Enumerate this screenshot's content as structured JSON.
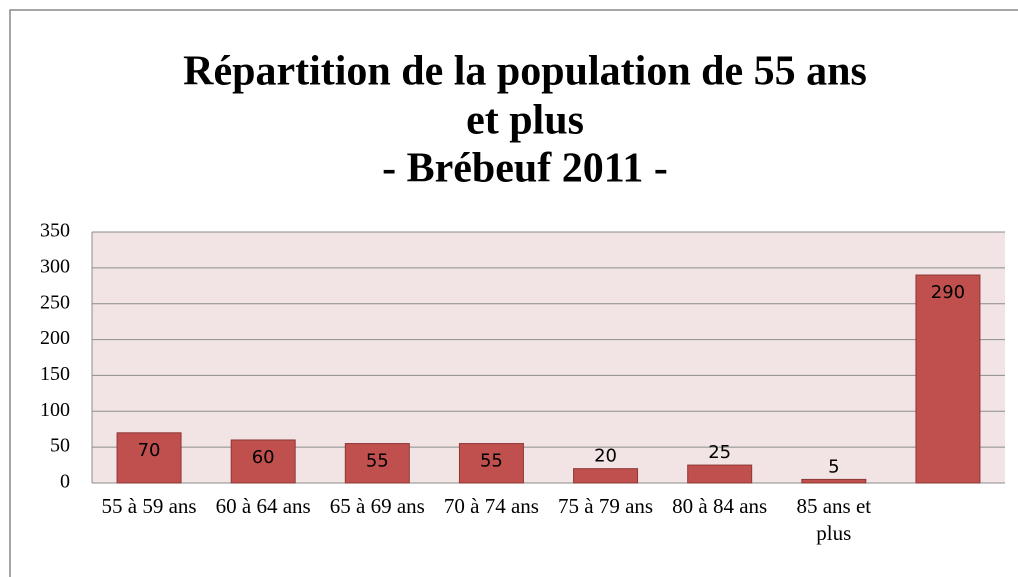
{
  "chart_data": {
    "type": "bar",
    "title": [
      "Répartition de la population de 55 ans",
      "et plus",
      "- Brébeuf 2011 -"
    ],
    "categories": [
      "55 à 59 ans",
      "60 à 64 ans",
      "65 à 69 ans",
      "70 à 74 ans",
      "75 à 79 ans",
      "80 à 84 ans",
      "85 ans et plus",
      null
    ],
    "values": [
      70,
      60,
      55,
      55,
      20,
      25,
      5,
      290
    ],
    "color": "#c0504d",
    "ylim": [
      0,
      350
    ],
    "yticks": [
      0,
      50,
      100,
      150,
      200,
      250,
      300,
      350
    ],
    "grid": true
  }
}
